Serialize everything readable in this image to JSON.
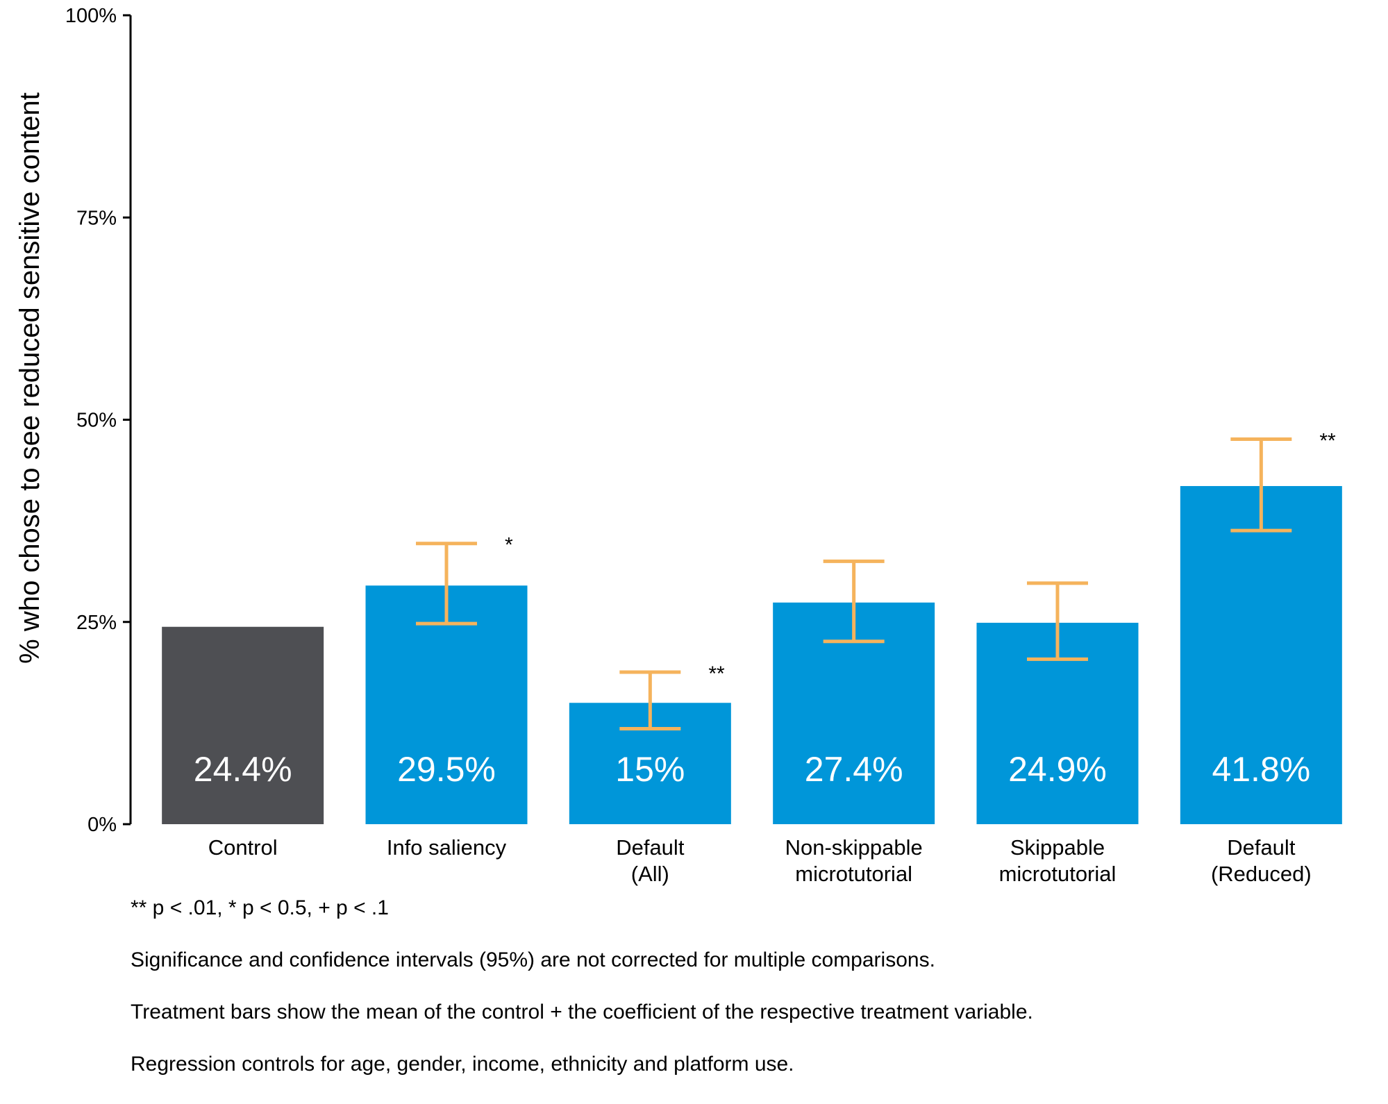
{
  "chart_data": {
    "type": "bar",
    "title": "",
    "xlabel": "",
    "ylabel": "% who chose to see reduced sensitive content",
    "ylim": [
      0,
      100
    ],
    "y_ticks": [
      "0%",
      "25%",
      "50%",
      "75%",
      "100%"
    ],
    "y_tick_values": [
      0,
      25,
      50,
      75,
      100
    ],
    "grid": false,
    "legend": "none",
    "categories": [
      [
        "Control"
      ],
      [
        "Info saliency"
      ],
      [
        "Default",
        "(All)"
      ],
      [
        "Non-skippable",
        "microtutorial"
      ],
      [
        "Skippable",
        "microtutorial"
      ],
      [
        "Default",
        "(Reduced)"
      ]
    ],
    "values": [
      24.4,
      29.5,
      15,
      27.4,
      24.9,
      41.8
    ],
    "value_labels": [
      "24.4%",
      "29.5%",
      "15%",
      "27.4%",
      "24.9%",
      "41.8%"
    ],
    "error_bars": [
      null,
      [
        24.8,
        34.7
      ],
      [
        11.8,
        18.8
      ],
      [
        22.6,
        32.5
      ],
      [
        20.4,
        29.8
      ],
      [
        36.3,
        47.6
      ]
    ],
    "significance": [
      "",
      "*",
      "**",
      "",
      "",
      "**"
    ],
    "colors": {
      "control": "#4e4f53",
      "treatment": "#0096d9",
      "error_bar": "#f5b35c",
      "value_label": "#ffffff"
    }
  },
  "footnotes": [
    "** p < .01, * p < 0.5, + p < .1",
    "Significance and confidence intervals (95%) are not corrected for multiple comparisons.",
    "Treatment bars show the mean of the control + the coefficient of the respective treatment variable.",
    "Regression controls for age, gender, income, ethnicity and platform use."
  ]
}
